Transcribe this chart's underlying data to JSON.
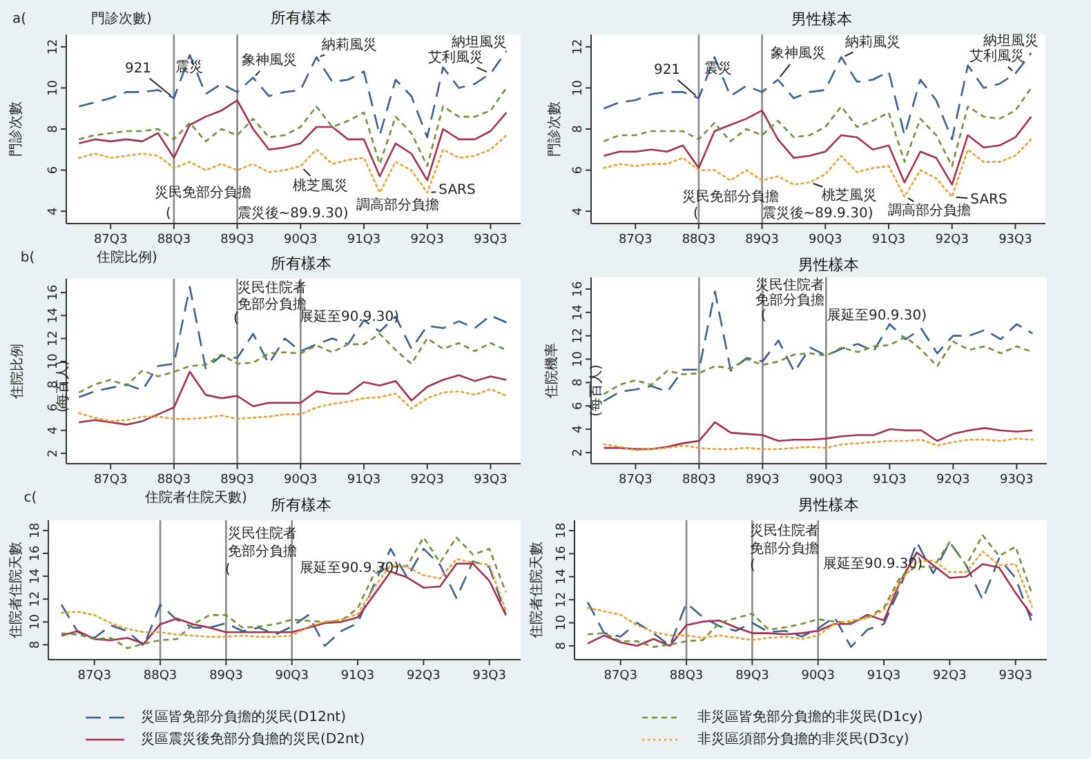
{
  "chart_data": [
    {
      "type": "line",
      "title": "所有樣本",
      "ylabel": "門診次數",
      "categories": [
        null,
        null,
        "87Q3",
        null,
        null,
        null,
        "88Q3",
        null,
        null,
        null,
        "89Q3",
        null,
        null,
        null,
        "90Q3",
        null,
        null,
        null,
        "91Q3",
        null,
        null,
        null,
        "92Q3",
        null,
        null,
        null,
        "93Q3",
        null
      ],
      "ylim": [
        3.4,
        12.6
      ],
      "yticks": [
        4,
        6,
        8,
        10,
        12
      ],
      "grid": false,
      "ref_lines": [
        {
          "axis": "x",
          "value": "88Q3",
          "color": "#888888"
        },
        {
          "axis": "x",
          "value": "89Q3",
          "color": "#888888"
        }
      ],
      "annotations": [
        "a(",
        "門診次數)",
        {
          "text": "921",
          "x": "88Q3",
          "y": 9.5
        },
        "震災",
        "象神風災",
        "納莉風災",
        {
          "text": "艾利風災",
          "x": "93Q3",
          "y": 10.7
        },
        "納坦風災",
        "災民免部分負擔",
        "(",
        "震災後~89.9.30)",
        {
          "text": "桃芝風災",
          "x": "90Q3",
          "y": 6.2
        },
        "調高部分負擔",
        {
          "text": "SARS",
          "x": "92Q3",
          "y": 4.9
        }
      ],
      "series": [
        {
          "color": "#3a5f8f",
          "line_style": "dashed",
          "values": [
            9.1,
            9.3,
            9.5,
            9.8,
            9.8,
            9.9,
            9.5,
            11.6,
            9.7,
            10.2,
            9.8,
            10.5,
            9.6,
            9.8,
            9.9,
            11.5,
            10.3,
            10.4,
            10.8,
            7.7,
            10.4,
            9.6,
            7.6,
            11.0,
            10.0,
            10.2,
            10.7,
            11.8
          ]
        },
        {
          "color": "#a3304d",
          "line_style": "solid",
          "values": [
            7.3,
            7.5,
            7.4,
            7.5,
            7.4,
            7.8,
            6.6,
            8.2,
            8.6,
            8.9,
            9.4,
            8.0,
            7.0,
            7.1,
            7.3,
            8.1,
            8.1,
            7.5,
            7.5,
            5.7,
            7.3,
            6.8,
            5.5,
            8.0,
            7.5,
            7.5,
            7.9,
            8.8
          ]
        },
        {
          "color": "#6f8f3a",
          "line_style": "dashed",
          "values": [
            7.5,
            7.7,
            7.8,
            7.9,
            7.9,
            8.0,
            7.5,
            8.3,
            7.4,
            8.0,
            7.7,
            8.5,
            7.6,
            7.7,
            8.1,
            9.1,
            8.1,
            8.4,
            8.8,
            6.3,
            8.6,
            7.8,
            6.2,
            9.1,
            8.6,
            8.6,
            8.9,
            10.0
          ]
        },
        {
          "color": "#eaa030",
          "line_style": "dotted",
          "values": [
            6.6,
            6.8,
            6.6,
            6.7,
            6.8,
            6.7,
            6.1,
            6.4,
            6.0,
            6.3,
            6.0,
            6.3,
            5.9,
            6.0,
            6.2,
            7.0,
            6.3,
            6.5,
            6.6,
            4.9,
            6.4,
            6.0,
            4.9,
            7.0,
            6.6,
            6.7,
            7.0,
            7.7
          ]
        }
      ]
    },
    {
      "type": "line",
      "title": "男性樣本",
      "ylabel": "門診次數",
      "categories": [
        null,
        null,
        "87Q3",
        null,
        null,
        null,
        "88Q3",
        null,
        null,
        null,
        "89Q3",
        null,
        null,
        null,
        "90Q3",
        null,
        null,
        null,
        "91Q3",
        null,
        null,
        null,
        "92Q3",
        null,
        null,
        null,
        "93Q3",
        null
      ],
      "ylim": [
        3.4,
        12.6
      ],
      "yticks": [
        4,
        6,
        8,
        10,
        12
      ],
      "grid": false,
      "ref_lines": [
        {
          "axis": "x",
          "value": "88Q3",
          "color": "#888888"
        },
        {
          "axis": "x",
          "value": "89Q3",
          "color": "#888888"
        }
      ],
      "annotations": [
        {
          "text": "921",
          "x": "88Q3",
          "y": 9.5
        },
        "震災",
        "象神風災",
        "納莉風災",
        {
          "text": "艾利風災",
          "x": "93Q3",
          "y": 10.7
        },
        "納坦風災",
        "災民免部分負擔",
        "(",
        "震災後~89.9.30)",
        "桃芝風災",
        "調高部分負擔",
        {
          "text": "SARS",
          "x": "92Q3",
          "y": 4.7
        }
      ],
      "series": [
        {
          "color": "#3a5f8f",
          "line_style": "dashed",
          "values": [
            9.0,
            9.3,
            9.4,
            9.7,
            9.8,
            9.8,
            9.5,
            11.5,
            9.6,
            10.1,
            9.8,
            10.4,
            9.5,
            9.8,
            9.9,
            11.5,
            10.3,
            10.4,
            10.8,
            7.7,
            10.4,
            9.4,
            7.5,
            11.1,
            10.0,
            10.2,
            10.7,
            11.7
          ]
        },
        {
          "color": "#a3304d",
          "line_style": "solid",
          "values": [
            6.7,
            6.9,
            6.9,
            7.0,
            6.9,
            7.2,
            6.1,
            7.9,
            8.2,
            8.5,
            8.9,
            7.5,
            6.6,
            6.7,
            6.9,
            7.7,
            7.6,
            7.0,
            7.2,
            5.4,
            6.9,
            6.6,
            5.3,
            7.7,
            7.1,
            7.2,
            7.6,
            8.6
          ]
        },
        {
          "color": "#6f8f3a",
          "line_style": "dashed",
          "values": [
            7.4,
            7.7,
            7.7,
            7.9,
            7.9,
            7.9,
            7.5,
            8.3,
            7.4,
            8.0,
            7.7,
            8.4,
            7.6,
            7.7,
            8.1,
            9.1,
            8.1,
            8.4,
            8.8,
            6.4,
            8.5,
            7.7,
            6.2,
            9.1,
            8.6,
            8.5,
            8.9,
            10.0
          ]
        },
        {
          "color": "#eaa030",
          "line_style": "dotted",
          "values": [
            6.1,
            6.3,
            6.2,
            6.3,
            6.3,
            6.6,
            6.0,
            6.0,
            5.5,
            6.0,
            5.5,
            5.7,
            5.3,
            5.4,
            5.8,
            6.7,
            5.9,
            6.1,
            6.2,
            4.7,
            6.0,
            5.6,
            4.7,
            7.0,
            6.4,
            6.4,
            6.7,
            7.5
          ]
        }
      ]
    },
    {
      "type": "line",
      "title": "所有樣本",
      "ylabel": "住院比例",
      "categories": [
        null,
        null,
        "87Q3",
        null,
        null,
        null,
        "88Q3",
        null,
        null,
        null,
        "89Q3",
        null,
        null,
        null,
        "90Q3",
        null,
        null,
        null,
        "91Q3",
        null,
        null,
        null,
        "92Q3",
        null,
        null,
        null,
        "93Q3",
        null
      ],
      "ylim": [
        1.1,
        17.2
      ],
      "yticks": [
        2,
        4,
        6,
        8,
        10,
        12,
        14,
        16
      ],
      "grid": false,
      "ref_lines": [
        {
          "axis": "x",
          "value": "88Q3",
          "color": "#888888"
        },
        {
          "axis": "x",
          "value": "89Q3",
          "color": "#888888"
        },
        {
          "axis": "x",
          "value": "90Q3",
          "color": "#888888"
        }
      ],
      "annotations": [
        "b(",
        "住院比例)",
        "災民住院者",
        "免部分負擔",
        "(",
        "展延至90.9.30)",
        "(每百人)"
      ],
      "series": [
        {
          "color": "#3a5f8f",
          "line_style": "dashed",
          "values": [
            6.9,
            7.4,
            7.7,
            8.0,
            7.5,
            9.6,
            9.8,
            16.5,
            9.4,
            10.5,
            10.3,
            12.4,
            9.8,
            12.0,
            10.9,
            11.5,
            12.0,
            11.5,
            13.6,
            12.6,
            13.9,
            11.1,
            13.1,
            12.9,
            13.5,
            12.9,
            14.0,
            13.4
          ]
        },
        {
          "color": "#a3304d",
          "line_style": "solid",
          "values": [
            4.7,
            4.9,
            4.7,
            4.5,
            4.8,
            5.4,
            6.0,
            9.1,
            7.1,
            6.8,
            7.0,
            6.1,
            6.4,
            6.4,
            6.4,
            7.4,
            7.2,
            7.2,
            8.2,
            7.9,
            8.3,
            6.6,
            7.8,
            8.4,
            8.8,
            8.3,
            8.7,
            8.4
          ]
        },
        {
          "color": "#6f8f3a",
          "line_style": "dashed",
          "values": [
            7.3,
            8.0,
            8.4,
            7.9,
            9.2,
            8.7,
            9.1,
            9.6,
            9.7,
            10.6,
            9.8,
            9.9,
            10.7,
            10.8,
            10.7,
            11.4,
            10.8,
            11.5,
            11.5,
            12.4,
            11.0,
            9.8,
            12.0,
            11.1,
            11.6,
            10.9,
            11.6,
            11.0
          ]
        },
        {
          "color": "#eaa030",
          "line_style": "dotted",
          "values": [
            5.5,
            5.1,
            4.8,
            4.9,
            5.2,
            5.2,
            5.0,
            5.0,
            5.1,
            5.3,
            5.0,
            5.1,
            5.2,
            5.4,
            5.4,
            6.0,
            6.3,
            6.5,
            6.8,
            6.9,
            7.2,
            5.9,
            6.8,
            7.3,
            7.4,
            7.1,
            7.6,
            7.0
          ]
        }
      ]
    },
    {
      "type": "line",
      "title": "男性樣本",
      "ylabel": "住院機率",
      "categories": [
        null,
        null,
        "87Q3",
        null,
        null,
        null,
        "88Q3",
        null,
        null,
        null,
        "89Q3",
        null,
        null,
        null,
        "90Q3",
        null,
        null,
        null,
        "91Q3",
        null,
        null,
        null,
        "92Q3",
        null,
        null,
        null,
        "93Q3",
        null
      ],
      "ylim": [
        1.05,
        17.0
      ],
      "yticks": [
        2,
        4,
        6,
        8,
        10,
        12,
        14,
        16
      ],
      "grid": false,
      "ref_lines": [
        {
          "axis": "x",
          "value": "88Q3",
          "color": "#888888"
        },
        {
          "axis": "x",
          "value": "89Q3",
          "color": "#888888"
        },
        {
          "axis": "x",
          "value": "90Q3",
          "color": "#888888"
        }
      ],
      "annotations": [
        "災民住院者",
        "免部分負擔",
        "(",
        "展延至90.9.30)",
        "(每百人)"
      ],
      "series": [
        {
          "color": "#3a5f8f",
          "line_style": "dashed",
          "values": [
            6.4,
            7.2,
            7.4,
            7.7,
            7.2,
            9.1,
            9.1,
            15.8,
            9.0,
            10.1,
            9.8,
            11.6,
            8.9,
            11.0,
            10.3,
            10.9,
            11.3,
            10.7,
            13.0,
            11.7,
            12.6,
            10.5,
            12.0,
            12.0,
            12.5,
            11.7,
            13.0,
            12.2
          ]
        },
        {
          "color": "#a3304d",
          "line_style": "solid",
          "values": [
            2.4,
            2.4,
            2.3,
            2.3,
            2.5,
            2.8,
            3.0,
            4.6,
            3.7,
            3.6,
            3.5,
            3.0,
            3.1,
            3.1,
            3.2,
            3.4,
            3.5,
            3.5,
            4.0,
            3.9,
            3.9,
            3.0,
            3.6,
            3.9,
            4.1,
            3.9,
            3.8,
            3.9
          ]
        },
        {
          "color": "#6f8f3a",
          "line_style": "dashed",
          "values": [
            7.0,
            7.8,
            8.2,
            7.8,
            9.0,
            8.7,
            8.8,
            9.4,
            9.2,
            10.0,
            9.5,
            9.8,
            10.4,
            10.5,
            10.3,
            11.0,
            10.6,
            11.1,
            11.2,
            11.9,
            10.8,
            9.4,
            11.5,
            10.8,
            11.1,
            10.5,
            11.1,
            10.6
          ]
        },
        {
          "color": "#eaa030",
          "line_style": "dotted",
          "values": [
            2.7,
            2.5,
            2.2,
            2.3,
            2.4,
            2.6,
            2.4,
            2.3,
            2.3,
            2.4,
            2.3,
            2.3,
            2.4,
            2.5,
            2.4,
            2.7,
            2.8,
            2.9,
            3.0,
            3.0,
            3.1,
            2.6,
            2.9,
            3.1,
            3.1,
            3.0,
            3.2,
            3.1
          ]
        }
      ]
    },
    {
      "type": "line",
      "title": "所有樣本",
      "ylabel": "住院者住院天數",
      "legend": "bottom",
      "categories": [
        null,
        null,
        "87Q3",
        null,
        null,
        null,
        "88Q3",
        null,
        null,
        null,
        "89Q3",
        null,
        null,
        null,
        "90Q3",
        null,
        null,
        null,
        "91Q3",
        null,
        null,
        null,
        "92Q3",
        null,
        null,
        null,
        "93Q3",
        null
      ],
      "ylim": [
        6.7,
        18.9
      ],
      "yticks": [
        8,
        10,
        12,
        14,
        16,
        18
      ],
      "grid": false,
      "ref_lines": [
        {
          "axis": "x",
          "value": "88Q3",
          "color": "#888888"
        },
        {
          "axis": "x",
          "value": "89Q3",
          "color": "#888888"
        },
        {
          "axis": "x",
          "value": "90Q3",
          "color": "#888888"
        }
      ],
      "annotations": [
        "c(",
        "住院者住院天數)",
        "災民住院者",
        "免部分負擔",
        "(",
        "展延至90.9.30)"
      ],
      "series": [
        {
          "name": "災區皆免部分負擔的災民(D12nt)",
          "color": "#3a5f8f",
          "line_style": "dashed",
          "values": [
            11.5,
            9.1,
            8.6,
            9.7,
            9.2,
            7.9,
            11.5,
            10.2,
            9.5,
            9.5,
            9.9,
            9.2,
            9.5,
            8.9,
            9.6,
            10.6,
            7.9,
            9.2,
            9.9,
            13.3,
            16.4,
            13.9,
            16.4,
            15.0,
            12.1,
            15.3,
            14.8,
            10.6
          ]
        },
        {
          "name": "災區震災後免部分負擔的災民(D2nt)",
          "color": "#a3304d",
          "line_style": "solid",
          "values": [
            8.8,
            9.2,
            8.5,
            8.4,
            8.6,
            8.1,
            9.8,
            10.3,
            9.8,
            9.5,
            9.1,
            9.1,
            9.1,
            9.1,
            9.1,
            9.5,
            9.9,
            10.0,
            10.4,
            12.4,
            14.4,
            13.9,
            13.0,
            13.1,
            15.1,
            15.1,
            13.6,
            10.6
          ]
        },
        {
          "name": "非災區皆免部分負擔的非災民(D1cy)",
          "color": "#6f8f3a",
          "line_style": "dashed",
          "values": [
            9.0,
            8.9,
            8.5,
            8.6,
            7.7,
            8.1,
            8.4,
            8.5,
            9.8,
            10.6,
            10.6,
            9.5,
            9.6,
            9.8,
            10.2,
            10.1,
            10.0,
            10.1,
            11.2,
            14.2,
            14.8,
            14.9,
            17.4,
            15.2,
            17.4,
            15.9,
            16.4,
            12.6
          ]
        },
        {
          "name": "非災區須部分負擔的非災民(D3cy)",
          "color": "#eaa030",
          "line_style": "dotted",
          "values": [
            10.8,
            10.9,
            10.6,
            9.9,
            9.4,
            9.1,
            9.1,
            8.9,
            8.8,
            8.7,
            8.7,
            8.8,
            8.7,
            8.7,
            8.8,
            9.6,
            10.0,
            10.2,
            10.7,
            13.0,
            15.0,
            14.8,
            14.1,
            13.8,
            15.5,
            15.2,
            15.0,
            11.0
          ]
        }
      ]
    },
    {
      "type": "line",
      "title": "男性樣本",
      "ylabel": "住院者住院天數",
      "categories": [
        null,
        null,
        "87Q3",
        null,
        null,
        null,
        "88Q3",
        null,
        null,
        null,
        "89Q3",
        null,
        null,
        null,
        "90Q3",
        null,
        null,
        null,
        "91Q3",
        null,
        null,
        null,
        "92Q3",
        null,
        null,
        null,
        "93Q3",
        null
      ],
      "ylim": [
        6.8,
        18.9
      ],
      "yticks": [
        8,
        10,
        12,
        14,
        16,
        18
      ],
      "grid": false,
      "ref_lines": [
        {
          "axis": "x",
          "value": "88Q3",
          "color": "#888888"
        },
        {
          "axis": "x",
          "value": "89Q3",
          "color": "#888888"
        },
        {
          "axis": "x",
          "value": "90Q3",
          "color": "#888888"
        }
      ],
      "annotations": [
        "災民住院者",
        "免部分負擔",
        "(",
        "展延至90.9.30)"
      ],
      "series": [
        {
          "color": "#3a5f8f",
          "line_style": "dashed",
          "values": [
            11.8,
            9.1,
            8.8,
            10.0,
            9.1,
            8.0,
            11.7,
            10.5,
            9.7,
            9.3,
            10.0,
            9.2,
            9.3,
            8.8,
            9.5,
            10.5,
            7.9,
            9.4,
            9.9,
            13.1,
            17.0,
            14.3,
            17.0,
            15.0,
            12.0,
            15.6,
            13.9,
            10.0
          ]
        },
        {
          "color": "#a3304d",
          "line_style": "solid",
          "values": [
            8.2,
            8.9,
            8.3,
            8.0,
            8.6,
            8.0,
            9.8,
            10.1,
            10.2,
            9.6,
            9.1,
            9.1,
            9.0,
            9.1,
            9.3,
            9.9,
            9.9,
            10.7,
            10.2,
            13.6,
            16.1,
            15.0,
            13.9,
            14.0,
            15.1,
            14.8,
            12.6,
            10.6
          ]
        },
        {
          "color": "#6f8f3a",
          "line_style": "dashed",
          "values": [
            9.0,
            9.1,
            8.4,
            8.4,
            7.9,
            8.1,
            8.4,
            8.5,
            10.0,
            10.4,
            10.8,
            9.4,
            9.6,
            9.9,
            10.3,
            10.1,
            10.0,
            10.5,
            11.3,
            14.0,
            14.9,
            14.8,
            17.0,
            15.0,
            17.6,
            15.8,
            16.6,
            12.5
          ]
        },
        {
          "color": "#eaa030",
          "line_style": "dotted",
          "values": [
            11.3,
            11.0,
            10.7,
            9.8,
            9.2,
            8.9,
            8.9,
            8.7,
            8.9,
            8.7,
            8.5,
            8.7,
            8.8,
            8.6,
            8.9,
            9.9,
            10.2,
            10.4,
            11.1,
            13.6,
            15.3,
            15.4,
            14.4,
            14.4,
            16.2,
            15.0,
            15.1,
            11.4
          ]
        }
      ]
    }
  ]
}
